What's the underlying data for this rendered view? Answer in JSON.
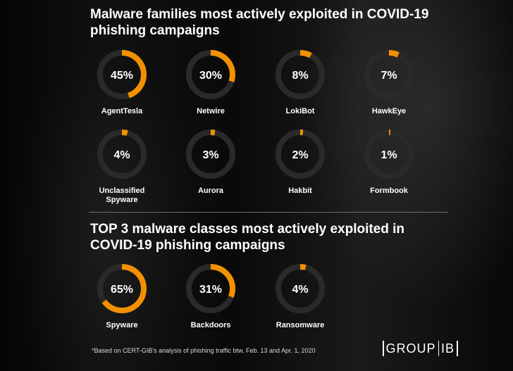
{
  "header": {
    "title1": "Malware families most actively exploited in COVID-19 phishing campaigns",
    "title2": "TOP 3 malware classes most actively exploited in COVID-19 phishing campaigns"
  },
  "footnote": "*Based on CERT-GIB's analysis of phishing traffic btw. Feb. 13 and Apr. 1, 2020",
  "logo": {
    "part1": "GROUP",
    "part2": "IB"
  },
  "colors": {
    "accent": "#f29100",
    "track": "#2a2a2a",
    "text": "#ffffff"
  },
  "chart_data": [
    {
      "type": "pie",
      "variant": "donut",
      "title": "Malware families most actively exploited in COVID-19 phishing campaigns",
      "unit": "%",
      "items": [
        {
          "label": "AgentTesla",
          "value": 45
        },
        {
          "label": "Netwire",
          "value": 30
        },
        {
          "label": "LokiBot",
          "value": 8
        },
        {
          "label": "HawkEye",
          "value": 7
        },
        {
          "label": "Unclassified Spyware",
          "value": 4
        },
        {
          "label": "Aurora",
          "value": 3
        },
        {
          "label": "Hakbit",
          "value": 2
        },
        {
          "label": "Formbook",
          "value": 1
        }
      ]
    },
    {
      "type": "pie",
      "variant": "donut",
      "title": "TOP 3 malware classes most actively exploited in COVID-19 phishing campaigns",
      "unit": "%",
      "items": [
        {
          "label": "Spyware",
          "value": 65
        },
        {
          "label": "Backdoors",
          "value": 31
        },
        {
          "label": "Ransomware",
          "value": 4
        }
      ]
    }
  ]
}
